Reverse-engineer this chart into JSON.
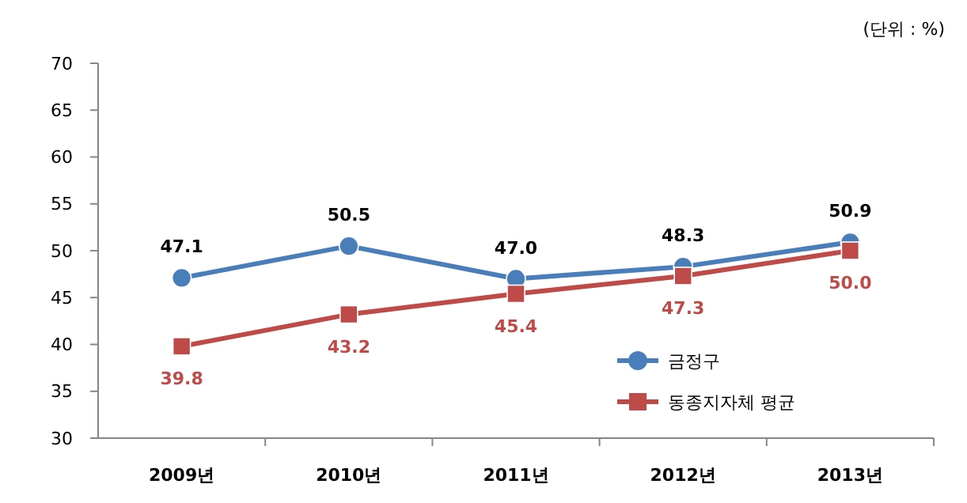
{
  "chart_data": {
    "type": "line",
    "categories": [
      "2009년",
      "2010년",
      "2011년",
      "2012년",
      "2013년"
    ],
    "series": [
      {
        "name": "금정구",
        "color": "#4a7ebb",
        "marker": "circle",
        "values": [
          47.1,
          50.5,
          47.0,
          48.3,
          50.9
        ],
        "value_labels": [
          "47.1",
          "50.5",
          "47.0",
          "48.3",
          "50.9"
        ]
      },
      {
        "name": "동종지자체 평균",
        "color": "#be4b48",
        "marker": "square",
        "values": [
          39.8,
          43.2,
          45.4,
          47.3,
          50.0
        ],
        "value_labels": [
          "39.8",
          "43.2",
          "45.4",
          "47.3",
          "50.0"
        ]
      }
    ],
    "ylim": [
      30,
      70
    ],
    "yticks": [
      30,
      35,
      40,
      45,
      50,
      55,
      60,
      65,
      70
    ],
    "grid": false,
    "legend": "bottom right",
    "annotations": [
      "(단위 : %)"
    ]
  }
}
